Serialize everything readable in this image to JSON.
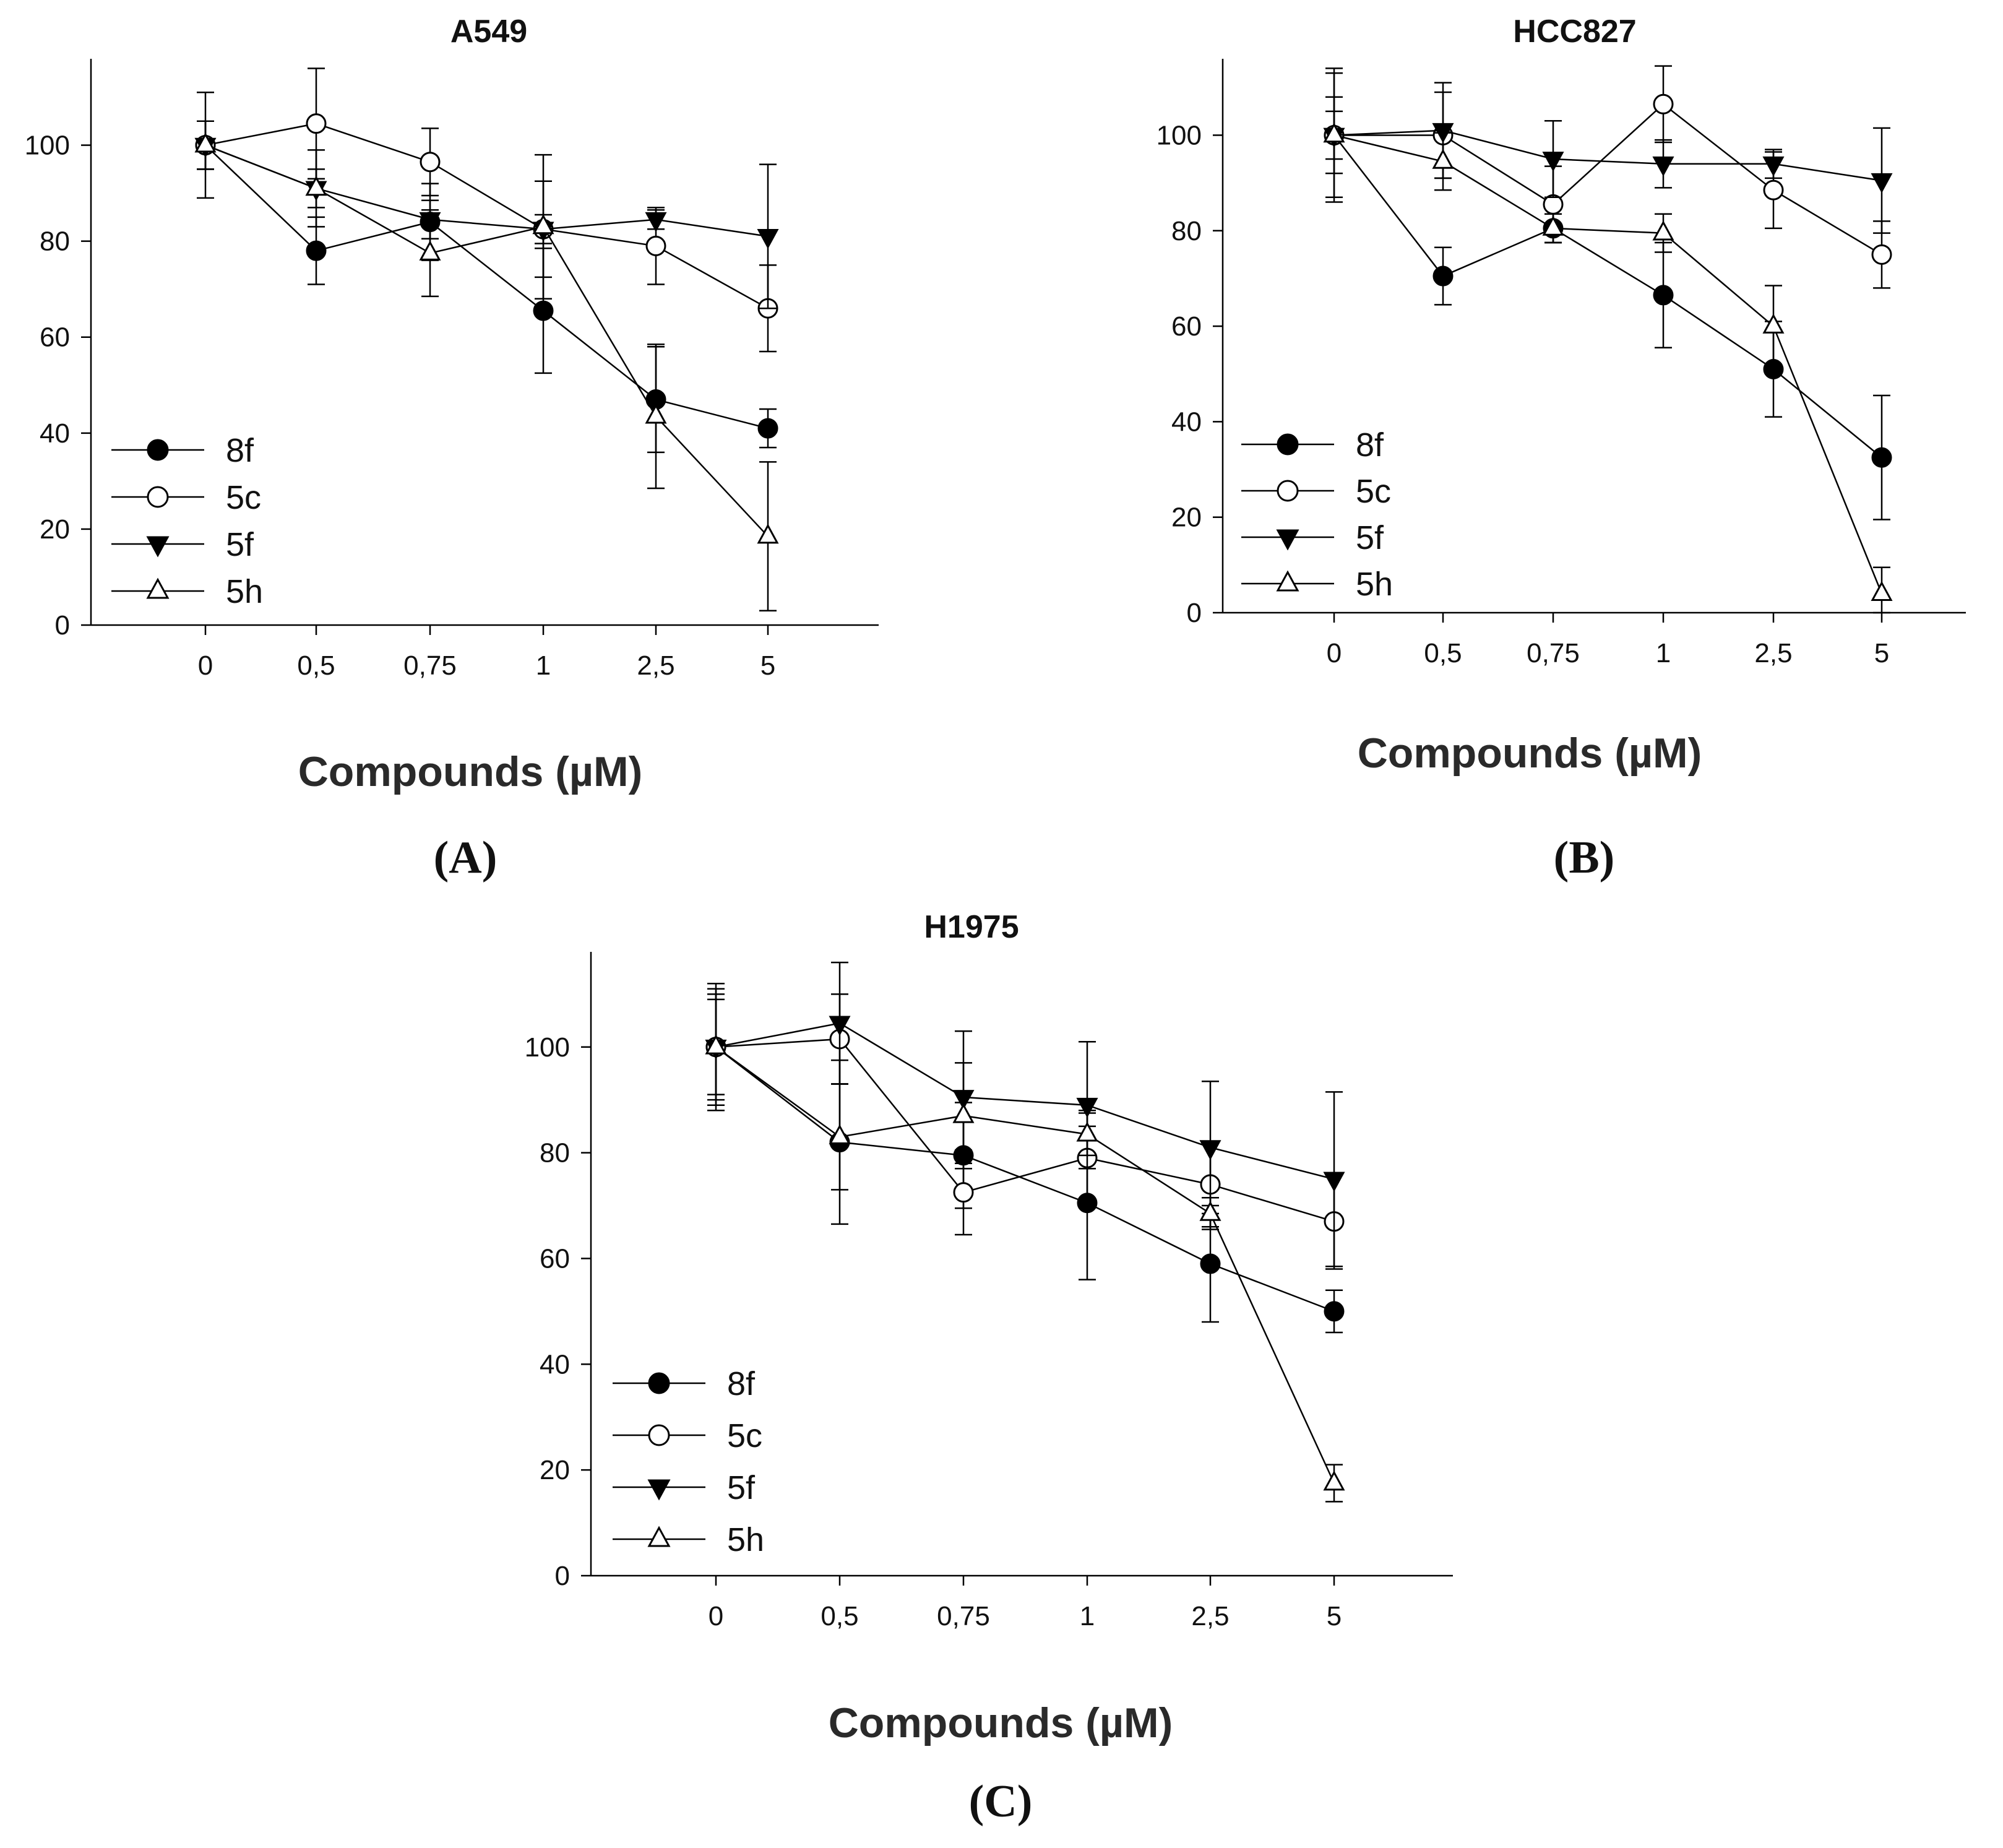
{
  "chart_data": [
    {
      "type": "line",
      "title": "A549",
      "panel_label": "(A)",
      "xlabel": "Compounds (µM)",
      "ylabel": "",
      "categories": [
        "0",
        "0,5",
        "0,75",
        "1",
        "2,5",
        "5"
      ],
      "yticks": [
        "0",
        "20",
        "40",
        "60",
        "80",
        "100"
      ],
      "ylim": [
        0,
        118
      ],
      "legend_position": "bottom-left",
      "series": [
        {
          "name": "8f",
          "marker": "filled-circle",
          "values": [
            100,
            78,
            84,
            65.5,
            47,
            41
          ],
          "errors": [
            5,
            7,
            8,
            13,
            11,
            4
          ]
        },
        {
          "name": "5c",
          "marker": "open-circle",
          "values": [
            100,
            104.5,
            96.5,
            82.5,
            79,
            66
          ],
          "errors": [
            5,
            11.5,
            7,
            10,
            8,
            9
          ]
        },
        {
          "name": "5f",
          "marker": "filled-triangle-down",
          "values": [
            100,
            91,
            84.5,
            82.5,
            84.5,
            81
          ],
          "errors": [
            5,
            4,
            4,
            3,
            2,
            15
          ]
        },
        {
          "name": "5h",
          "marker": "open-triangle-up",
          "values": [
            100,
            91,
            77.5,
            83,
            43.5,
            18.5
          ],
          "errors": [
            11,
            8,
            9,
            15,
            15,
            15.5
          ]
        }
      ]
    },
    {
      "type": "line",
      "title": "HCC827",
      "panel_label": "(B)",
      "xlabel": "Compounds (µM)",
      "ylabel": "",
      "categories": [
        "0",
        "0,5",
        "0,75",
        "1",
        "2,5",
        "5"
      ],
      "yticks": [
        "0",
        "20",
        "40",
        "60",
        "80",
        "100"
      ],
      "ylim": [
        0,
        116
      ],
      "legend_position": "bottom-left",
      "series": [
        {
          "name": "8f",
          "marker": "filled-circle",
          "values": [
            100,
            70.5,
            80.5,
            66.5,
            51,
            32.5
          ],
          "errors": [
            14,
            6,
            3,
            11,
            10,
            13
          ]
        },
        {
          "name": "5c",
          "marker": "open-circle",
          "values": [
            100,
            100,
            85.5,
            106.5,
            88.5,
            75
          ],
          "errors": [
            8,
            9,
            8,
            8,
            8,
            7
          ]
        },
        {
          "name": "5f",
          "marker": "filled-triangle-down",
          "values": [
            100,
            101,
            95,
            94,
            94,
            90.5
          ],
          "errors": [
            5,
            10,
            8,
            5,
            3,
            11
          ]
        },
        {
          "name": "5h",
          "marker": "open-triangle-up",
          "values": [
            100,
            94.5,
            80.5,
            79.5,
            60,
            4
          ],
          "errors": [
            13,
            6,
            3,
            4,
            8.5,
            5.5
          ]
        }
      ]
    },
    {
      "type": "line",
      "title": "H1975",
      "panel_label": "(C)",
      "xlabel": "Compounds (µM)",
      "ylabel": "",
      "categories": [
        "0",
        "0,5",
        "0,75",
        "1",
        "2,5",
        "5"
      ],
      "yticks": [
        "0",
        "20",
        "40",
        "60",
        "80",
        "100"
      ],
      "ylim": [
        0,
        118
      ],
      "legend_position": "bottom-left",
      "series": [
        {
          "name": "8f",
          "marker": "filled-circle",
          "values": [
            100,
            82,
            79.5,
            70.5,
            59,
            50
          ],
          "errors": [
            12,
            15.5,
            10,
            14.5,
            11,
            4
          ]
        },
        {
          "name": "5c",
          "marker": "open-circle",
          "values": [
            100,
            101.5,
            72.5,
            79,
            74,
            67
          ],
          "errors": [
            10,
            8.5,
            8,
            9,
            8,
            9
          ]
        },
        {
          "name": "5f",
          "marker": "filled-triangle-down",
          "values": [
            100,
            104.5,
            90.5,
            89,
            81,
            75
          ],
          "errors": [
            9,
            11.5,
            12.5,
            12,
            12.5,
            16.5
          ]
        },
        {
          "name": "5h",
          "marker": "open-triangle-up",
          "values": [
            100,
            83,
            87,
            83.5,
            68.5,
            17.5
          ],
          "errors": [
            11,
            10,
            10,
            4,
            3,
            3.5
          ]
        }
      ]
    }
  ]
}
